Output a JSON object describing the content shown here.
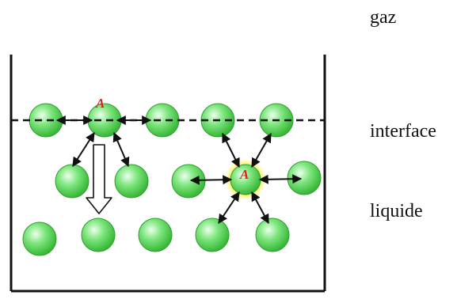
{
  "labels": {
    "gaz": "gaz",
    "interface": "interface",
    "liquide": "liquide"
  },
  "molecule_tags": {
    "surface": "A",
    "bulk": "A"
  },
  "colors": {
    "molecule_fill": "#6fe06f",
    "molecule_highlight": "#ecffec",
    "molecule_stroke": "#2f9e2f",
    "glow": "#ffee55",
    "tag": "#e0201b",
    "lines": "#111111"
  }
}
